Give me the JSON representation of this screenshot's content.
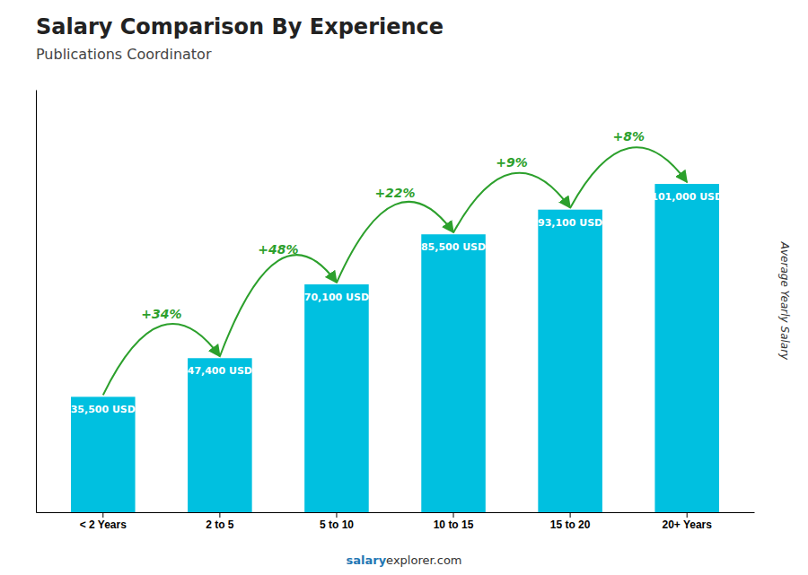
{
  "chart_data": {
    "type": "bar",
    "title": "Salary Comparison By Experience",
    "subtitle": "Publications Coordinator",
    "ylabel": "Average Yearly Salary",
    "categories": [
      "< 2 Years",
      "2 to 5",
      "5 to 10",
      "10 to 15",
      "15 to 20",
      "20+ Years"
    ],
    "values": [
      35500,
      47400,
      70100,
      85500,
      93100,
      101000
    ],
    "value_labels": [
      "35,500 USD",
      "47,400 USD",
      "70,100 USD",
      "85,500 USD",
      "93,100 USD",
      "101,000 USD"
    ],
    "data_labels": true,
    "color": "#00C0E0",
    "ylim": [
      0,
      130000
    ],
    "tick_labels": "x",
    "grid": false,
    "annotations": [
      "+34%",
      "+48%",
      "+22%",
      "+9%",
      "+8%"
    ],
    "footer": [
      "salary",
      "explorer.com"
    ]
  }
}
